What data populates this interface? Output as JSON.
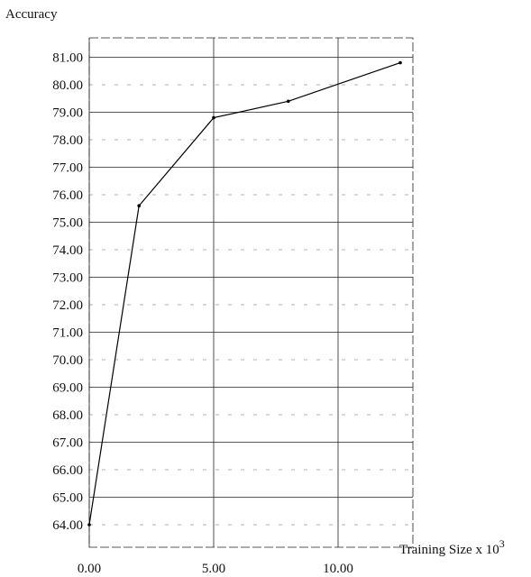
{
  "chart_data": {
    "type": "line",
    "title": "",
    "ylabel": "Accuracy",
    "xlabel": "Training Size x 10",
    "xlabel_superscript": "3",
    "xlim": [
      0,
      12.5
    ],
    "ylim": [
      63.5,
      81.7
    ],
    "x_ticks": [
      0,
      5,
      10
    ],
    "x_tick_labels": [
      "0.00",
      "5.00",
      "10.00"
    ],
    "y_ticks": [
      64,
      65,
      66,
      67,
      68,
      69,
      70,
      71,
      72,
      73,
      74,
      75,
      76,
      77,
      78,
      79,
      80,
      81
    ],
    "y_tick_labels": [
      "64.00",
      "65.00",
      "66.00",
      "67.00",
      "68.00",
      "69.00",
      "70.00",
      "71.00",
      "72.00",
      "73.00",
      "74.00",
      "75.00",
      "76.00",
      "77.00",
      "78.00",
      "79.00",
      "80.00",
      "81.00"
    ],
    "grid": true,
    "series": [
      {
        "x": [
          0,
          2,
          5,
          8,
          12.5
        ],
        "y": [
          64.0,
          75.6,
          78.8,
          79.4,
          80.8
        ]
      }
    ]
  }
}
